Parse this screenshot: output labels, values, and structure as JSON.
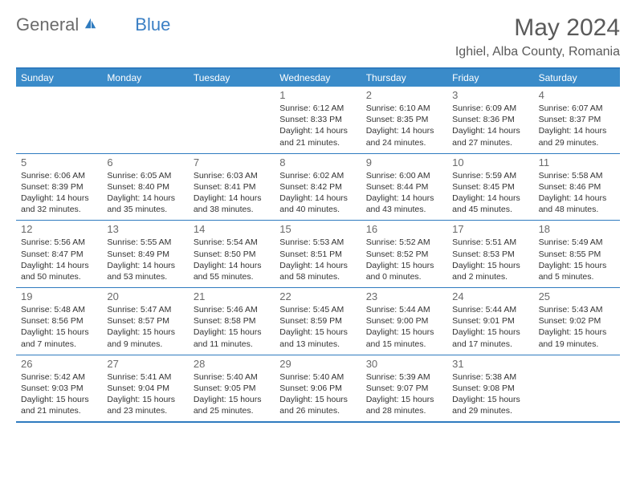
{
  "brand": {
    "gray": "General",
    "blue": "Blue"
  },
  "title": "May 2024",
  "location": "Ighiel, Alba County, Romania",
  "colors": {
    "header_bg": "#3a8bc9",
    "border": "#2f7bbf",
    "brand_gray": "#6b6b6b",
    "brand_blue": "#3a7fc4",
    "title_color": "#5a5a5a"
  },
  "day_names": [
    "Sunday",
    "Monday",
    "Tuesday",
    "Wednesday",
    "Thursday",
    "Friday",
    "Saturday"
  ],
  "weeks": [
    [
      null,
      null,
      null,
      {
        "n": "1",
        "sr": "6:12 AM",
        "ss": "8:33 PM",
        "dl": "14 hours and 21 minutes."
      },
      {
        "n": "2",
        "sr": "6:10 AM",
        "ss": "8:35 PM",
        "dl": "14 hours and 24 minutes."
      },
      {
        "n": "3",
        "sr": "6:09 AM",
        "ss": "8:36 PM",
        "dl": "14 hours and 27 minutes."
      },
      {
        "n": "4",
        "sr": "6:07 AM",
        "ss": "8:37 PM",
        "dl": "14 hours and 29 minutes."
      }
    ],
    [
      {
        "n": "5",
        "sr": "6:06 AM",
        "ss": "8:39 PM",
        "dl": "14 hours and 32 minutes."
      },
      {
        "n": "6",
        "sr": "6:05 AM",
        "ss": "8:40 PM",
        "dl": "14 hours and 35 minutes."
      },
      {
        "n": "7",
        "sr": "6:03 AM",
        "ss": "8:41 PM",
        "dl": "14 hours and 38 minutes."
      },
      {
        "n": "8",
        "sr": "6:02 AM",
        "ss": "8:42 PM",
        "dl": "14 hours and 40 minutes."
      },
      {
        "n": "9",
        "sr": "6:00 AM",
        "ss": "8:44 PM",
        "dl": "14 hours and 43 minutes."
      },
      {
        "n": "10",
        "sr": "5:59 AM",
        "ss": "8:45 PM",
        "dl": "14 hours and 45 minutes."
      },
      {
        "n": "11",
        "sr": "5:58 AM",
        "ss": "8:46 PM",
        "dl": "14 hours and 48 minutes."
      }
    ],
    [
      {
        "n": "12",
        "sr": "5:56 AM",
        "ss": "8:47 PM",
        "dl": "14 hours and 50 minutes."
      },
      {
        "n": "13",
        "sr": "5:55 AM",
        "ss": "8:49 PM",
        "dl": "14 hours and 53 minutes."
      },
      {
        "n": "14",
        "sr": "5:54 AM",
        "ss": "8:50 PM",
        "dl": "14 hours and 55 minutes."
      },
      {
        "n": "15",
        "sr": "5:53 AM",
        "ss": "8:51 PM",
        "dl": "14 hours and 58 minutes."
      },
      {
        "n": "16",
        "sr": "5:52 AM",
        "ss": "8:52 PM",
        "dl": "15 hours and 0 minutes."
      },
      {
        "n": "17",
        "sr": "5:51 AM",
        "ss": "8:53 PM",
        "dl": "15 hours and 2 minutes."
      },
      {
        "n": "18",
        "sr": "5:49 AM",
        "ss": "8:55 PM",
        "dl": "15 hours and 5 minutes."
      }
    ],
    [
      {
        "n": "19",
        "sr": "5:48 AM",
        "ss": "8:56 PM",
        "dl": "15 hours and 7 minutes."
      },
      {
        "n": "20",
        "sr": "5:47 AM",
        "ss": "8:57 PM",
        "dl": "15 hours and 9 minutes."
      },
      {
        "n": "21",
        "sr": "5:46 AM",
        "ss": "8:58 PM",
        "dl": "15 hours and 11 minutes."
      },
      {
        "n": "22",
        "sr": "5:45 AM",
        "ss": "8:59 PM",
        "dl": "15 hours and 13 minutes."
      },
      {
        "n": "23",
        "sr": "5:44 AM",
        "ss": "9:00 PM",
        "dl": "15 hours and 15 minutes."
      },
      {
        "n": "24",
        "sr": "5:44 AM",
        "ss": "9:01 PM",
        "dl": "15 hours and 17 minutes."
      },
      {
        "n": "25",
        "sr": "5:43 AM",
        "ss": "9:02 PM",
        "dl": "15 hours and 19 minutes."
      }
    ],
    [
      {
        "n": "26",
        "sr": "5:42 AM",
        "ss": "9:03 PM",
        "dl": "15 hours and 21 minutes."
      },
      {
        "n": "27",
        "sr": "5:41 AM",
        "ss": "9:04 PM",
        "dl": "15 hours and 23 minutes."
      },
      {
        "n": "28",
        "sr": "5:40 AM",
        "ss": "9:05 PM",
        "dl": "15 hours and 25 minutes."
      },
      {
        "n": "29",
        "sr": "5:40 AM",
        "ss": "9:06 PM",
        "dl": "15 hours and 26 minutes."
      },
      {
        "n": "30",
        "sr": "5:39 AM",
        "ss": "9:07 PM",
        "dl": "15 hours and 28 minutes."
      },
      {
        "n": "31",
        "sr": "5:38 AM",
        "ss": "9:08 PM",
        "dl": "15 hours and 29 minutes."
      },
      null
    ]
  ],
  "labels": {
    "sunrise": "Sunrise:",
    "sunset": "Sunset:",
    "daylight": "Daylight:"
  }
}
